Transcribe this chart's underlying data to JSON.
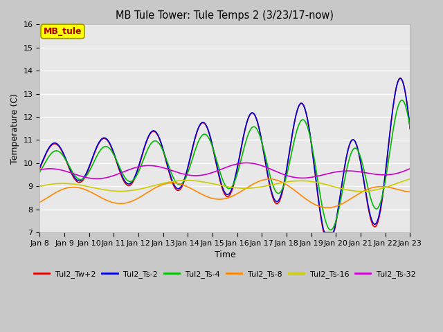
{
  "title": "MB Tule Tower: Tule Temps 2 (3/23/17-now)",
  "xlabel": "Time",
  "ylabel": "Temperature (C)",
  "ylim": [
    7.0,
    16.0
  ],
  "yticks": [
    7.0,
    8.0,
    9.0,
    10.0,
    11.0,
    12.0,
    13.0,
    14.0,
    15.0,
    16.0
  ],
  "xtick_labels": [
    "Jan 8",
    "Jan 9",
    "Jan 10",
    "Jan 11",
    "Jan 12",
    "Jan 13",
    "Jan 14",
    "Jan 15",
    "Jan 16",
    "Jan 17",
    "Jan 18",
    "Jan 19",
    "Jan 20",
    "Jan 21",
    "Jan 22",
    "Jan 23"
  ],
  "legend_box_label": "MB_tule",
  "legend_box_color": "#ffff00",
  "legend_box_text_color": "#aa0000",
  "series": [
    {
      "label": "Tul2_Tw+2",
      "color": "#dd0000",
      "lw": 1.2
    },
    {
      "label": "Tul2_Ts-2",
      "color": "#0000dd",
      "lw": 1.2
    },
    {
      "label": "Tul2_Ts-4",
      "color": "#00bb00",
      "lw": 1.2
    },
    {
      "label": "Tul2_Ts-8",
      "color": "#ff8800",
      "lw": 1.2
    },
    {
      "label": "Tul2_Ts-16",
      "color": "#cccc00",
      "lw": 1.2
    },
    {
      "label": "Tul2_Ts-32",
      "color": "#cc00cc",
      "lw": 1.2
    }
  ]
}
